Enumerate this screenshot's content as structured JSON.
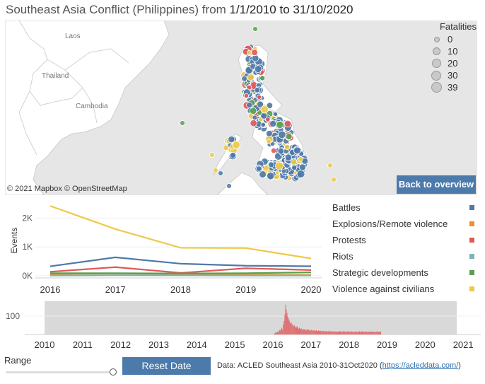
{
  "header": {
    "title_prefix": "Southeast Asia Conflict (Philippines) from",
    "date_start": "1/1/2010",
    "date_sep": "to",
    "date_end": "31/10/2020"
  },
  "map": {
    "country_labels": [
      "Laos",
      "Thailand",
      "Cambodia"
    ],
    "attribution": "© 2021 Mapbox © OpenStreetMap",
    "back_button": "Back to overview",
    "legend_title": "Fatalities",
    "legend_sizes": [
      "0",
      "10",
      "20",
      "30",
      "39"
    ]
  },
  "colors": {
    "battles": "#4e79a7",
    "explosions": "#f28e2b",
    "protests": "#e15759",
    "riots": "#76b7b2",
    "strategic": "#59a14f",
    "violence": "#edc948",
    "land": "#ffffff",
    "water": "#e6e6e6",
    "button": "#4b7aab"
  },
  "legend": [
    {
      "label": "Battles",
      "color": "#4e79a7"
    },
    {
      "label": "Explosions/Remote violence",
      "color": "#f28e2b"
    },
    {
      "label": "Protests",
      "color": "#e15759"
    },
    {
      "label": "Riots",
      "color": "#76b7b2"
    },
    {
      "label": "Strategic developments",
      "color": "#59a14f"
    },
    {
      "label": "Violence against civilians",
      "color": "#edc948"
    }
  ],
  "chart_data": [
    {
      "type": "line",
      "ylabel": "Events",
      "x": [
        "2016",
        "2017",
        "2018",
        "2019",
        "2020"
      ],
      "ytick_labels": [
        "0K",
        "1K",
        "2K"
      ],
      "ylim": [
        0,
        2500
      ],
      "series": [
        {
          "name": "Battles",
          "color": "#4e79a7",
          "values": [
            330,
            640,
            420,
            350,
            330
          ]
        },
        {
          "name": "Explosions/Remote violence",
          "color": "#f28e2b",
          "values": [
            60,
            80,
            60,
            40,
            30
          ]
        },
        {
          "name": "Protests",
          "color": "#e15759",
          "values": [
            140,
            300,
            100,
            260,
            200
          ]
        },
        {
          "name": "Riots",
          "color": "#76b7b2",
          "values": [
            10,
            20,
            15,
            10,
            10
          ]
        },
        {
          "name": "Strategic developments",
          "color": "#59a14f",
          "values": [
            90,
            90,
            80,
            90,
            120
          ]
        },
        {
          "name": "Violence against civilians",
          "color": "#edc948",
          "values": [
            2420,
            1620,
            970,
            960,
            600
          ]
        }
      ]
    },
    {
      "type": "bar",
      "ytick_labels": [
        "100"
      ],
      "ylim": [
        0,
        140
      ],
      "x_labels": [
        "2010",
        "2011",
        "2012",
        "2013",
        "2014",
        "2015",
        "2016",
        "2017",
        "2018",
        "2019",
        "2020",
        "2021"
      ],
      "selected_range": [
        "2010",
        "31/10/2020"
      ],
      "weekly_start": "2016",
      "weekly_values": [
        5,
        8,
        6,
        10,
        12,
        9,
        15,
        20,
        18,
        25,
        30,
        22,
        45,
        60,
        88,
        132,
        110,
        95,
        80,
        70,
        62,
        55,
        48,
        52,
        45,
        40,
        38,
        42,
        35,
        30,
        33,
        36,
        28,
        25,
        30,
        27,
        24,
        26,
        22,
        20,
        25,
        23,
        21,
        18,
        22,
        19,
        24,
        20,
        18,
        17,
        21,
        19,
        16,
        18,
        20,
        15,
        17,
        19,
        16,
        14,
        18,
        15,
        17,
        16,
        14,
        13,
        17,
        15,
        14,
        16,
        13,
        15,
        14,
        12,
        16,
        14,
        13,
        15,
        12,
        14,
        13,
        11,
        15,
        13,
        12,
        14,
        11,
        13,
        12,
        15,
        14,
        11,
        13,
        12,
        14,
        16,
        13,
        12,
        11,
        14,
        13,
        15,
        12,
        11,
        13,
        14,
        12,
        13,
        11,
        12,
        14,
        13,
        12,
        11,
        13,
        12,
        14,
        11,
        12,
        13,
        15,
        12,
        11,
        12,
        14,
        13,
        12,
        11,
        13,
        12,
        11,
        13,
        14,
        12,
        11,
        12,
        13,
        12,
        11,
        13,
        12,
        14,
        11,
        12,
        13,
        12
      ]
    }
  ],
  "controls": {
    "range_label": "Range",
    "reset_button": "Reset Date",
    "range_value": 1.0
  },
  "source": {
    "text": "Data: ACLED Southeast Asia 2010-31Oct2020 (",
    "link": "https://acleddata.com/",
    "close": ")"
  }
}
